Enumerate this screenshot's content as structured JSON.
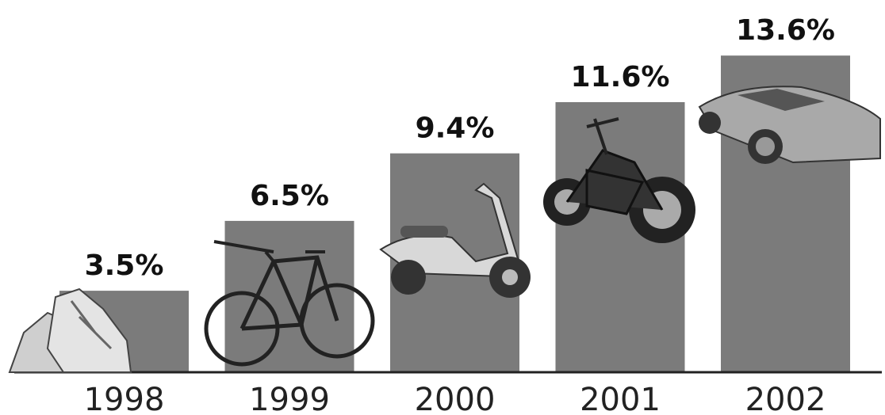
{
  "chart_data": {
    "type": "bar",
    "categories": [
      "1998",
      "1999",
      "2000",
      "2001",
      "2002"
    ],
    "values": [
      3.5,
      6.5,
      9.4,
      11.6,
      13.6
    ],
    "value_labels": [
      "3.5%",
      "6.5%",
      "9.4%",
      "11.6%",
      "13.6%"
    ],
    "color": "#7b7b7b"
  }
}
